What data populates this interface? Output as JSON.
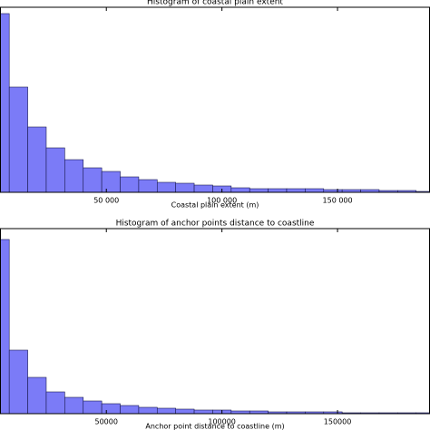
{
  "chart_data": [
    {
      "type": "histogram",
      "title": "Histogram of coastal plain extent",
      "x_label": "Coastal plain extent (m)",
      "bins": [
        0,
        8000,
        16000,
        24000,
        32000,
        40000,
        48000,
        56000,
        64000,
        72000,
        80000,
        88000,
        96000,
        104000,
        112000,
        120000,
        128000,
        136000,
        144000,
        152000,
        160000,
        168000,
        176000,
        184000,
        192000
      ],
      "counts": [
        197,
        116,
        72,
        49,
        36,
        27,
        23,
        17,
        14,
        11,
        10,
        8,
        7,
        5,
        4,
        4,
        4,
        4,
        3,
        3,
        3,
        2,
        2,
        1
      ],
      "color": "#7b7bf7",
      "xlim": [
        4000,
        190000
      ],
      "ylim": [
        0,
        204
      ],
      "xticks": [
        {
          "value": 50000,
          "label": "50 000"
        },
        {
          "value": 100000,
          "label": "100 000"
        },
        {
          "value": 150000,
          "label": "150 000"
        }
      ]
    },
    {
      "type": "histogram",
      "title": "Histogram of anchor points distance to coastline",
      "x_label": "Anchor point distance to coastline (m)",
      "bins": [
        0,
        8000,
        16000,
        24000,
        32000,
        40000,
        48000,
        56000,
        64000,
        72000,
        80000,
        88000,
        96000,
        104000,
        112000,
        120000,
        128000,
        136000,
        144000,
        152000,
        160000,
        168000,
        176000,
        184000,
        192000
      ],
      "counts": [
        192,
        70,
        40,
        24,
        18,
        14,
        11,
        9,
        7,
        6,
        5,
        4,
        4,
        3,
        3,
        2,
        2,
        2,
        2,
        1,
        1,
        1,
        1,
        1
      ],
      "color": "#7b7bf7",
      "xlim": [
        4000,
        190000
      ],
      "ylim": [
        0,
        204
      ],
      "xticks": [
        50000,
        100000,
        150000
      ]
    }
  ]
}
